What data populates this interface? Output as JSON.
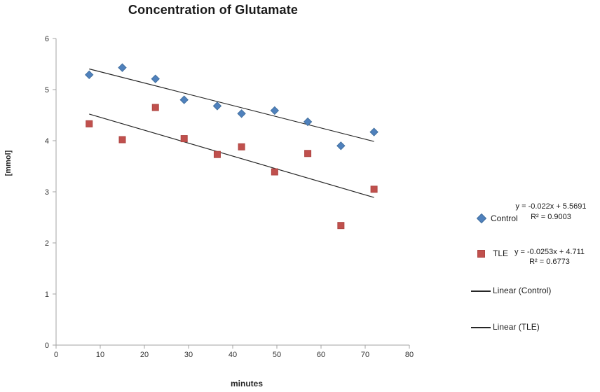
{
  "chart_data": {
    "type": "scatter",
    "title": "Concentration of Glutamate",
    "xlabel": "minutes",
    "ylabel": "[mmol]",
    "xlim": [
      0,
      80
    ],
    "ylim": [
      0,
      6
    ],
    "x_ticks": [
      0,
      10,
      20,
      30,
      40,
      50,
      60,
      70,
      80
    ],
    "y_ticks": [
      0,
      1,
      2,
      3,
      4,
      5,
      6
    ],
    "grid": false,
    "legend_position": "right",
    "axis_color": "#a3a3a3",
    "tick_label_color": "#333333",
    "trendline_color": "#262626",
    "x": [
      7.5,
      15,
      22.5,
      29,
      36.5,
      42,
      49.5,
      57,
      64.5,
      72
    ],
    "series": [
      {
        "name": "Control",
        "marker": "diamond",
        "color": "#4f81bd",
        "values": [
          5.29,
          5.43,
          5.21,
          4.8,
          4.68,
          4.53,
          4.59,
          4.37,
          3.9,
          4.17
        ],
        "trendline": {
          "label": "Linear (Control)",
          "equation": "y = -0.022x + 5.5691",
          "r_squared": "R² = 0.9003",
          "slope": -0.022,
          "intercept": 5.5691
        }
      },
      {
        "name": "TLE",
        "marker": "square",
        "color": "#c0504d",
        "values": [
          4.33,
          4.02,
          4.65,
          4.04,
          3.73,
          3.88,
          3.39,
          3.75,
          2.34,
          3.05
        ],
        "trendline": {
          "label": "Linear (TLE)",
          "equation": "y = -0.0253x + 4.711",
          "r_squared": "R² = 0.6773",
          "slope": -0.0253,
          "intercept": 4.711
        }
      }
    ]
  }
}
